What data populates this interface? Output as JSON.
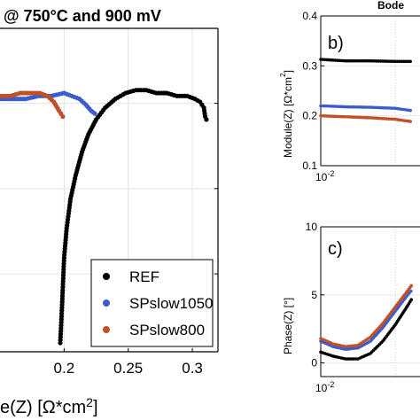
{
  "chart_data": [
    {
      "type": "scatter",
      "title": "@ 750°C and 900 mV",
      "xlabel": "e(Z) [Ω*cm2]",
      "ylabel": "",
      "x_ticks": [
        "0.2",
        "0.25",
        "0.3"
      ],
      "xlim": [
        0.15,
        0.32
      ],
      "ylim": [
        -0.04,
        0.07
      ],
      "grid": true,
      "legend_position": "bottom-right",
      "series": [
        {
          "name": "REF",
          "color": "#000000",
          "points": [
            [
              0.197,
              -0.037
            ],
            [
              0.198,
              -0.028
            ],
            [
              0.199,
              -0.018
            ],
            [
              0.2,
              -0.008
            ],
            [
              0.202,
              0.002
            ],
            [
              0.205,
              0.012
            ],
            [
              0.209,
              0.02
            ],
            [
              0.214,
              0.028
            ],
            [
              0.219,
              0.034
            ],
            [
              0.225,
              0.039
            ],
            [
              0.232,
              0.043
            ],
            [
              0.24,
              0.046
            ],
            [
              0.248,
              0.048
            ],
            [
              0.256,
              0.049
            ],
            [
              0.264,
              0.049
            ],
            [
              0.272,
              0.048
            ],
            [
              0.28,
              0.048
            ],
            [
              0.288,
              0.047
            ],
            [
              0.296,
              0.047
            ],
            [
              0.302,
              0.046
            ],
            [
              0.306,
              0.045
            ],
            [
              0.309,
              0.043
            ],
            [
              0.31,
              0.04
            ],
            [
              0.311,
              0.039
            ]
          ]
        },
        {
          "name": "SPslow1050",
          "color": "#3a5ccc",
          "points": [
            [
              0.15,
              0.046
            ],
            [
              0.16,
              0.046
            ],
            [
              0.17,
              0.046
            ],
            [
              0.18,
              0.047
            ],
            [
              0.19,
              0.047
            ],
            [
              0.2,
              0.048
            ],
            [
              0.206,
              0.047
            ],
            [
              0.212,
              0.046
            ],
            [
              0.217,
              0.044
            ],
            [
              0.221,
              0.042
            ],
            [
              0.224,
              0.041
            ]
          ]
        },
        {
          "name": "SPslow800",
          "color": "#c0502a",
          "points": [
            [
              0.15,
              0.047
            ],
            [
              0.158,
              0.047
            ],
            [
              0.166,
              0.048
            ],
            [
              0.174,
              0.048
            ],
            [
              0.181,
              0.048
            ],
            [
              0.187,
              0.047
            ],
            [
              0.192,
              0.045
            ],
            [
              0.196,
              0.042
            ],
            [
              0.199,
              0.04
            ]
          ]
        }
      ]
    },
    {
      "type": "line",
      "panel_label": "b)",
      "title": "Bode",
      "ylabel": "Module(Z) [Ω*cm2]",
      "y_ticks": [
        "0.4",
        "0.3",
        "0.2",
        "0.1"
      ],
      "x_ticks": [
        "10-2"
      ],
      "ylim": [
        0.1,
        0.4
      ],
      "xlim": [
        -2,
        -1.6
      ],
      "grid": true,
      "series": [
        {
          "name": "REF",
          "color": "#000000",
          "x": [
            -2.0,
            -1.9,
            -1.8,
            -1.7,
            -1.63
          ],
          "y": [
            0.313,
            0.31,
            0.31,
            0.309,
            0.309
          ]
        },
        {
          "name": "SPslow1050",
          "color": "#3a5ccc",
          "x": [
            -2.0,
            -1.9,
            -1.8,
            -1.7,
            -1.63
          ],
          "y": [
            0.22,
            0.218,
            0.217,
            0.215,
            0.21
          ]
        },
        {
          "name": "SPslow800",
          "color": "#c0502a",
          "x": [
            -2.0,
            -1.9,
            -1.8,
            -1.7,
            -1.63
          ],
          "y": [
            0.2,
            0.198,
            0.196,
            0.193,
            0.188
          ]
        }
      ]
    },
    {
      "type": "line",
      "panel_label": "c)",
      "ylabel": "Phase(Z) [°]",
      "y_ticks": [
        "10",
        "5",
        "0"
      ],
      "x_ticks": [
        "10-2"
      ],
      "ylim": [
        -1,
        10
      ],
      "xlim": [
        -2,
        -1.6
      ],
      "grid": true,
      "series": [
        {
          "name": "REF",
          "color": "#000000",
          "x": [
            -2.0,
            -1.95,
            -1.9,
            -1.85,
            -1.8,
            -1.75,
            -1.7,
            -1.65,
            -1.63
          ],
          "y": [
            0.8,
            0.5,
            0.3,
            0.3,
            0.7,
            1.6,
            2.8,
            4.2,
            4.8
          ]
        },
        {
          "name": "SPslow1050",
          "color": "#3a5ccc",
          "x": [
            -2.0,
            -1.95,
            -1.9,
            -1.85,
            -1.8,
            -1.75,
            -1.7,
            -1.65,
            -1.63
          ],
          "y": [
            1.6,
            1.2,
            1.0,
            1.1,
            1.6,
            2.6,
            3.8,
            5.0,
            5.4
          ]
        },
        {
          "name": "SPslow800",
          "color": "#c0502a",
          "x": [
            -2.0,
            -1.95,
            -1.9,
            -1.85,
            -1.8,
            -1.75,
            -1.7,
            -1.65,
            -1.63
          ],
          "y": [
            1.8,
            1.4,
            1.2,
            1.3,
            1.9,
            2.9,
            4.1,
            5.3,
            5.8
          ]
        }
      ]
    }
  ]
}
